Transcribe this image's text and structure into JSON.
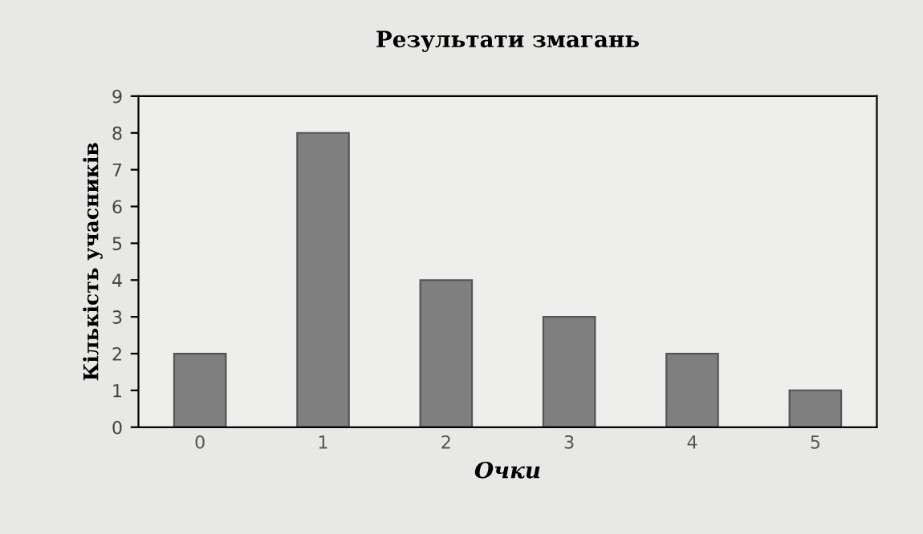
{
  "chart_data": {
    "type": "bar",
    "title": "Результати змагань",
    "xlabel": "Очки",
    "ylabel": "Кількість учасників",
    "categories": [
      "0",
      "1",
      "2",
      "3",
      "4",
      "5"
    ],
    "values": [
      2,
      8,
      4,
      3,
      2,
      1
    ],
    "color": "#7f7f7f",
    "ylim": [
      0,
      9
    ],
    "yticks": [
      0,
      1,
      2,
      3,
      4,
      5,
      6,
      7,
      8,
      9
    ],
    "grid": false
  }
}
